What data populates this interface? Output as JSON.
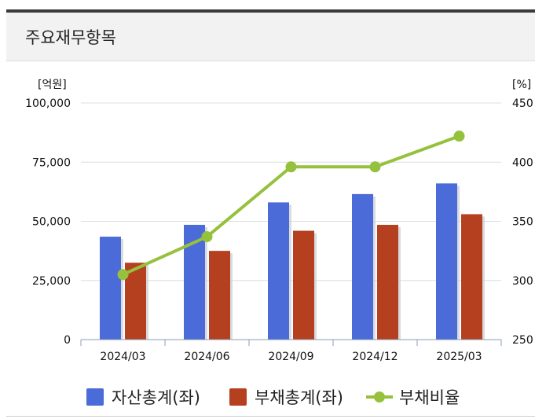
{
  "header": {
    "title": "주요재무항목"
  },
  "chart_data": {
    "type": "bar",
    "categories": [
      "2024/03",
      "2024/06",
      "2024/09",
      "2024/12",
      "2025/03"
    ],
    "series": [
      {
        "name": "자산총계(좌)",
        "kind": "bar",
        "axis": "left",
        "color": "#4a6bd8",
        "values": [
          43500,
          48500,
          58000,
          61500,
          66000
        ]
      },
      {
        "name": "부채총계(좌)",
        "kind": "bar",
        "axis": "left",
        "color": "#b5401f",
        "values": [
          32500,
          37500,
          46000,
          48500,
          53000
        ]
      },
      {
        "name": "부채비율",
        "kind": "line",
        "axis": "right",
        "color": "#95c13d",
        "values": [
          305,
          337,
          396,
          396,
          422
        ]
      }
    ],
    "left_axis": {
      "unit": "[억원]",
      "ylim": [
        0,
        100000
      ],
      "ticks": [
        0,
        25000,
        50000,
        75000,
        100000
      ],
      "tick_labels": [
        "0",
        "25,000",
        "50,000",
        "75,000",
        "100,000"
      ]
    },
    "right_axis": {
      "unit": "[%]",
      "ylim": [
        250,
        450
      ],
      "ticks": [
        250,
        300,
        350,
        400,
        450
      ],
      "tick_labels": [
        "250",
        "300",
        "350",
        "400",
        "450"
      ]
    },
    "legend": {
      "position": "bottom"
    }
  },
  "legend": {
    "items": [
      "자산총계(좌)",
      "부채총계(좌)",
      "부채비율"
    ]
  }
}
